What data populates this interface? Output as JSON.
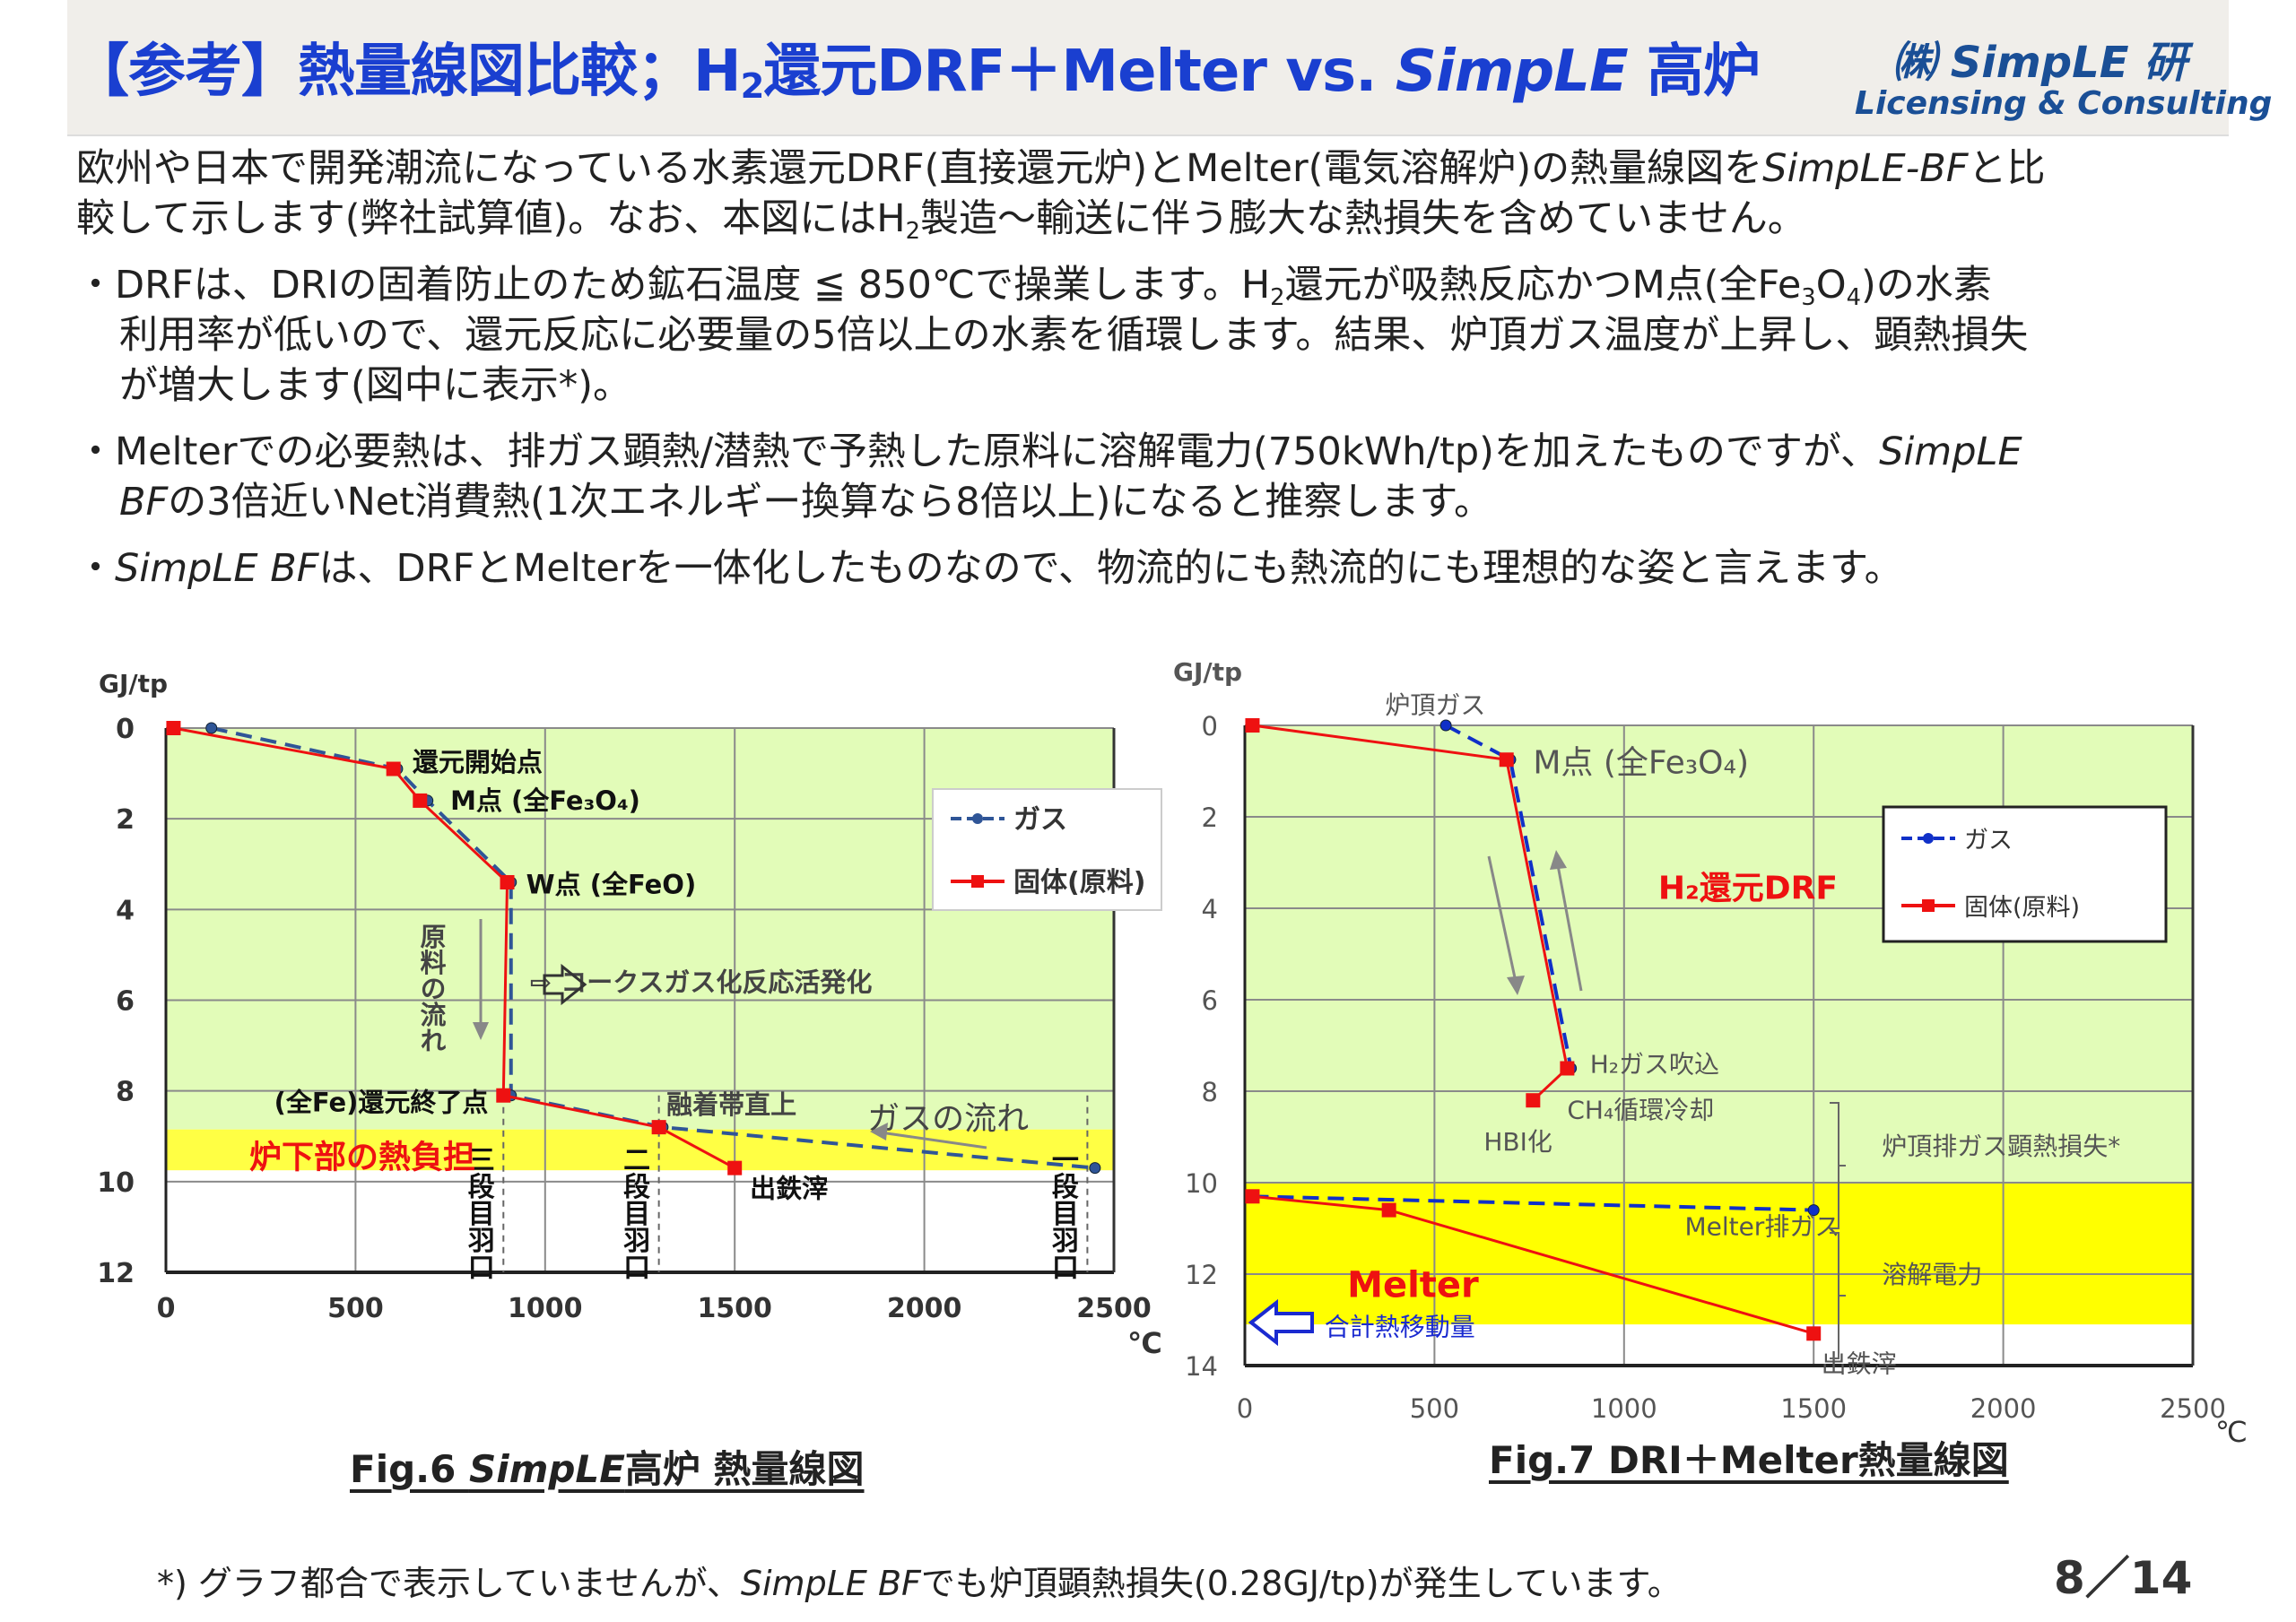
{
  "header": {
    "title": [
      {
        "t": "【参考】熱量線図比較；H"
      },
      {
        "t": "2",
        "sub": true
      },
      {
        "t": "還元DRF＋Melter vs. "
      },
      {
        "t": "SimpLE",
        "i": true
      },
      {
        "t": " 高炉"
      }
    ],
    "logo_line1": "㈱ SimpLE 研",
    "logo_line2": "Licensing & Consulting"
  },
  "intro": [
    [
      {
        "t": "欧州や日本で開発潮流になっている水素還元DRF(直接還元炉)とMelter(電気溶解炉)の熱量線図を"
      },
      {
        "t": "SimpLE-BF",
        "i": true
      },
      {
        "t": "と比"
      }
    ],
    [
      {
        "t": "較して示します(弊社試算値)。なお、本図にはH"
      },
      {
        "t": "2",
        "sub": true
      },
      {
        "t": "製造～輸送に伴う膨大な熱損失を含めていません。"
      }
    ]
  ],
  "bullets": [
    [
      [
        {
          "t": "・DRFは、DRIの固着防止のため鉱石温度 ≦ 850℃で操業します。H"
        },
        {
          "t": "2",
          "sub": true
        },
        {
          "t": "還元が吸熱反応かつM点(全Fe"
        },
        {
          "t": "3",
          "sub": true
        },
        {
          "t": "O"
        },
        {
          "t": "4",
          "sub": true
        },
        {
          "t": ")の水素"
        }
      ],
      [
        {
          "t": "利用率が低いので、還元反応に必要量の5倍以上の水素を循環します。結果、炉頂ガス温度が上昇し、顕熱損失"
        }
      ],
      [
        {
          "t": "が増大します(図中に表示*)。"
        }
      ]
    ],
    [
      [
        {
          "t": "・Melterでの必要熱は、排ガス顕熱/潜熱で予熱した原料に溶解電力(750kWh/tp)を加えたものですが、"
        },
        {
          "t": "SimpLE",
          "i": true
        }
      ],
      [
        {
          "t": "BF",
          "i": true
        },
        {
          "t": "の3倍近いNet消費熱(1次エネルギー換算なら8倍以上)になると推察します。"
        }
      ]
    ],
    [
      [
        {
          "t": "・"
        },
        {
          "t": "SimpLE BF",
          "i": true
        },
        {
          "t": "は、DRFとMelterを一体化したものなので、物流的にも熱流的にも理想的な姿と言えます。"
        }
      ]
    ]
  ],
  "captions": {
    "fig6": [
      {
        "t": "Fig.6 "
      },
      {
        "t": "SimpLE",
        "i": true
      },
      {
        "t": "高炉 熱量線図"
      }
    ],
    "fig7": [
      {
        "t": "Fig.7 DRI＋Melter熱量線図"
      }
    ]
  },
  "footnote": [
    {
      "t": "*) グラフ都合で表示していませんが、"
    },
    {
      "t": "SimpLE BF",
      "i": true
    },
    {
      "t": "でも炉頂顕熱損失(0.28GJ/tp)が発生しています。"
    }
  ],
  "page_number": "8／14",
  "colors": {
    "title": "#1a3fd0",
    "logo": "#1a4f96",
    "gas": "#1f4e8c",
    "solid": "#ee1111",
    "green": "#e2fcb8",
    "yellow": "#ffff33"
  },
  "chart_data": [
    {
      "type": "line",
      "ylabel": "GJ/tp",
      "xlabel": "℃",
      "xlim": [
        0,
        2500
      ],
      "ylim": [
        0,
        12
      ],
      "y_inverted": true,
      "grid": true,
      "xticks": [
        "0",
        "500",
        "1000",
        "1500",
        "2000",
        "2500"
      ],
      "yticks": [
        "0",
        "2",
        "4",
        "6",
        "8",
        "10",
        "12"
      ],
      "legend": {
        "placement": "top-right",
        "entries": [
          "ガス",
          "固体(原料)"
        ]
      },
      "bands": [
        {
          "from": 0,
          "to": 8.85,
          "color": "#e2fcb8"
        },
        {
          "from": 8.85,
          "to": 9.75,
          "color": "#ffff44"
        }
      ],
      "series": [
        {
          "name": "ガス",
          "style": "dashed",
          "color": "#2f5597",
          "marker": "circle",
          "x": [
            120,
            610,
            690,
            910,
            910,
            1310,
            2450
          ],
          "y": [
            0,
            0.9,
            1.6,
            3.4,
            8.1,
            8.8,
            9.7
          ]
        },
        {
          "name": "固体(原料)",
          "style": "solid",
          "color": "#ee1111",
          "marker": "square",
          "x": [
            20,
            600,
            670,
            900,
            890,
            1300,
            1500
          ],
          "y": [
            0,
            0.9,
            1.6,
            3.4,
            8.1,
            8.8,
            9.7
          ]
        }
      ],
      "vlines": [
        {
          "x": 890,
          "label": "三段目羽口"
        },
        {
          "x": 1300,
          "label": "二段目羽口"
        },
        {
          "x": 2430,
          "label": "一段目羽口"
        }
      ],
      "annotations": [
        {
          "text": "還元開始点",
          "x": 650,
          "y": 0.75
        },
        {
          "text": "M点 (全Fe₃O₄)",
          "x": 750,
          "y": 1.6
        },
        {
          "text": "W点 (全FeO)",
          "x": 950,
          "y": 3.45
        },
        {
          "text": "(全Fe)還元終了点",
          "x": 850,
          "y": 8.25,
          "anchor": "end"
        },
        {
          "text": "融着帯直上",
          "x": 1320,
          "y": 8.3,
          "gray": true
        },
        {
          "text": "ガスの流れ",
          "x": 1850,
          "y": 8.65,
          "gray": true,
          "big": true
        },
        {
          "text": "炉下部の熱負担",
          "x": 220,
          "y": 9.5,
          "red": true
        },
        {
          "text": "出鉄滓",
          "x": 1540,
          "y": 10.15
        },
        {
          "text": "⇨ コークスガス化反応活発化",
          "x": 960,
          "y": 5.6,
          "gray": true
        },
        {
          "text": "原料の流れ",
          "x": 700,
          "y": 4.1,
          "vertical": true,
          "gray": true
        }
      ]
    },
    {
      "type": "line",
      "ylabel": "GJ/tp",
      "xlabel": "℃",
      "xlim": [
        0,
        2500
      ],
      "ylim": [
        0,
        14
      ],
      "y_inverted": true,
      "grid": true,
      "xticks": [
        "0",
        "500",
        "1000",
        "1500",
        "2000",
        "2500"
      ],
      "yticks": [
        "0",
        "2",
        "4",
        "6",
        "8",
        "10",
        "12",
        "14"
      ],
      "legend": {
        "placement": "top-right",
        "entries": [
          "ガス",
          "固体(原料)"
        ]
      },
      "bands": [
        {
          "from": 0,
          "to": 10,
          "color": "#e2fcb8"
        },
        {
          "from": 10,
          "to": 13.1,
          "color": "#ffff00"
        }
      ],
      "series": [
        {
          "name": "ガス",
          "style": "dashed",
          "color": "#1030c8",
          "marker": "circle",
          "x": [
            530,
            700,
            860
          ],
          "y": [
            0,
            0.75,
            7.5
          ]
        },
        {
          "name": "固体(原料)",
          "style": "solid",
          "color": "#ee1111",
          "marker": "square",
          "x": [
            20,
            690,
            850,
            760
          ],
          "y": [
            0,
            0.75,
            7.5,
            8.2
          ]
        },
        {
          "style": "dashed",
          "color": "#1030c8",
          "marker": "circle",
          "x": [
            20,
            1500
          ],
          "y": [
            10.3,
            10.6
          ]
        },
        {
          "style": "solid",
          "color": "#ee1111",
          "marker": "square",
          "x": [
            20,
            380,
            1500
          ],
          "y": [
            10.3,
            10.6,
            13.3
          ]
        }
      ],
      "annotations": [
        {
          "text": "炉頂ガス",
          "x": 370,
          "y": -0.45,
          "gray": true
        },
        {
          "text": "M点 (全Fe₃O₄)",
          "x": 760,
          "y": 0.85,
          "gray": true,
          "big": true
        },
        {
          "text": "H₂還元DRF",
          "x": 1090,
          "y": 3.6,
          "red": true
        },
        {
          "text": "H₂ガス吹込",
          "x": 910,
          "y": 7.4,
          "gray": true
        },
        {
          "text": "CH₄循環冷却",
          "x": 850,
          "y": 8.4,
          "gray": true
        },
        {
          "text": "HBI化",
          "x": 630,
          "y": 9.1,
          "gray": true
        },
        {
          "text": "炉頂排ガス顕熱損失*",
          "x": 1680,
          "y": 9.2,
          "gray": true
        },
        {
          "text": "Melter排ガス",
          "x": 1160,
          "y": 10.95,
          "gray": true
        },
        {
          "text": "溶解電力",
          "x": 1680,
          "y": 12.0,
          "gray": true
        },
        {
          "text": "Melter",
          "x": 270,
          "y": 12.3,
          "red": true,
          "big": true
        },
        {
          "text": "合計熱移動量",
          "x": 210,
          "y": 13.15,
          "blue": true
        },
        {
          "text": "出鉄滓",
          "x": 1520,
          "y": 13.95,
          "gray": true
        }
      ]
    }
  ]
}
